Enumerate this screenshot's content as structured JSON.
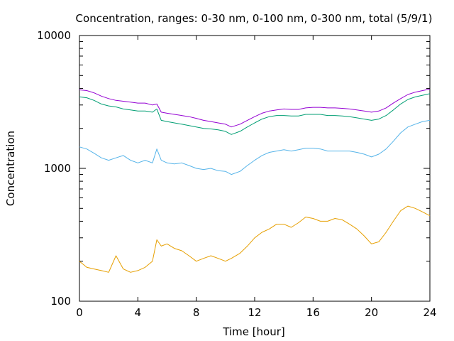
{
  "chart_data": {
    "type": "line",
    "title": "Concentration, ranges: 0-30 nm, 0-100 nm, 0-300 nm, total (5/9/1)",
    "xlabel": "Time [hour]",
    "ylabel": "Concentration",
    "xlim": [
      0,
      24
    ],
    "ylim": [
      100,
      10000
    ],
    "yscale": "log",
    "grid": false,
    "x_ticks": [
      "0",
      "4",
      "8",
      "12",
      "16",
      "20",
      "24"
    ],
    "y_ticks": [
      "100",
      "1000",
      "10000"
    ],
    "x": [
      0,
      0.5,
      1,
      1.5,
      2,
      2.5,
      3,
      3.5,
      4,
      4.5,
      5,
      5.3,
      5.6,
      6,
      6.5,
      7,
      7.5,
      8,
      8.5,
      9,
      9.5,
      10,
      10.4,
      11,
      11.5,
      12,
      12.5,
      13,
      13.5,
      14,
      14.5,
      15,
      15.5,
      16,
      16.5,
      17,
      17.5,
      18,
      18.5,
      19,
      19.5,
      20,
      20.5,
      21,
      21.5,
      22,
      22.5,
      23,
      23.5,
      24
    ],
    "series": [
      {
        "color": "#9400d3",
        "values": [
          3900,
          3850,
          3700,
          3500,
          3350,
          3250,
          3200,
          3150,
          3100,
          3100,
          3000,
          3050,
          2650,
          2600,
          2550,
          2500,
          2450,
          2380,
          2300,
          2250,
          2200,
          2150,
          2050,
          2150,
          2300,
          2450,
          2600,
          2700,
          2750,
          2800,
          2780,
          2780,
          2850,
          2880,
          2880,
          2850,
          2850,
          2830,
          2800,
          2750,
          2700,
          2650,
          2700,
          2850,
          3100,
          3350,
          3600,
          3750,
          3850,
          3950
        ]
      },
      {
        "color": "#009e73",
        "values": [
          3450,
          3400,
          3250,
          3050,
          2950,
          2900,
          2800,
          2750,
          2700,
          2700,
          2650,
          2800,
          2300,
          2250,
          2200,
          2150,
          2100,
          2050,
          2000,
          1980,
          1950,
          1900,
          1800,
          1900,
          2050,
          2200,
          2350,
          2450,
          2500,
          2500,
          2480,
          2480,
          2550,
          2550,
          2550,
          2500,
          2500,
          2480,
          2450,
          2400,
          2350,
          2300,
          2350,
          2500,
          2750,
          3050,
          3300,
          3450,
          3550,
          3650
        ]
      },
      {
        "color": "#56b4e9",
        "values": [
          1450,
          1400,
          1300,
          1200,
          1150,
          1200,
          1250,
          1150,
          1100,
          1150,
          1100,
          1400,
          1150,
          1100,
          1080,
          1100,
          1050,
          1000,
          980,
          1000,
          960,
          950,
          900,
          950,
          1050,
          1150,
          1250,
          1320,
          1350,
          1380,
          1350,
          1380,
          1420,
          1420,
          1400,
          1350,
          1350,
          1350,
          1350,
          1320,
          1280,
          1220,
          1280,
          1400,
          1600,
          1850,
          2050,
          2150,
          2250,
          2300
        ]
      },
      {
        "color": "#e69f00",
        "values": [
          200,
          180,
          175,
          170,
          165,
          220,
          175,
          165,
          170,
          180,
          200,
          290,
          260,
          270,
          250,
          240,
          220,
          200,
          210,
          220,
          210,
          200,
          210,
          230,
          260,
          300,
          330,
          350,
          380,
          380,
          360,
          390,
          430,
          420,
          400,
          400,
          420,
          410,
          380,
          350,
          310,
          270,
          280,
          330,
          400,
          480,
          520,
          500,
          470,
          440
        ]
      }
    ]
  }
}
